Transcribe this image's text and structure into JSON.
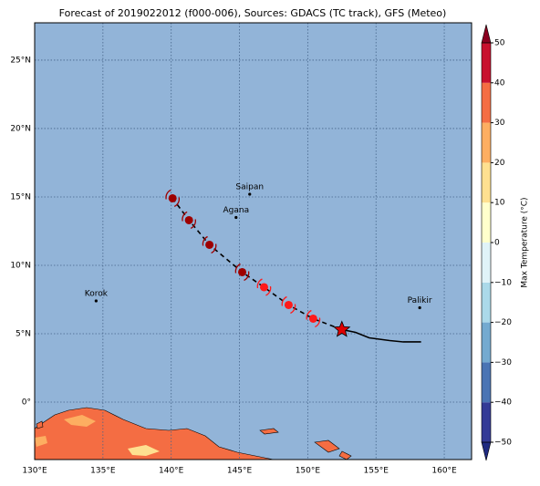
{
  "map": {
    "title": "Forecast of 2019022012 (f000-006), Sources: GDACS (TC track), GFS (Meteo)",
    "xlim": [
      130,
      162
    ],
    "ylim": [
      -4.2,
      27.73
    ],
    "xticks": [
      {
        "value": 130,
        "label": "130°E"
      },
      {
        "value": 135,
        "label": "135°E"
      },
      {
        "value": 140,
        "label": "140°E"
      },
      {
        "value": 145,
        "label": "145°E"
      },
      {
        "value": 150,
        "label": "150°E"
      },
      {
        "value": 155,
        "label": "155°E"
      },
      {
        "value": 160,
        "label": "160°E"
      }
    ],
    "yticks": [
      {
        "value": 0,
        "label": "0°"
      },
      {
        "value": 5,
        "label": "5°N"
      },
      {
        "value": 10,
        "label": "10°N"
      },
      {
        "value": 15,
        "label": "15°N"
      },
      {
        "value": 20,
        "label": "20°N"
      },
      {
        "value": 25,
        "label": "25°N"
      }
    ],
    "grid": true,
    "cities": [
      {
        "name": "Saipan",
        "lon": 145.75,
        "lat": 15.2
      },
      {
        "name": "Agana",
        "lon": 144.75,
        "lat": 13.5
      },
      {
        "name": "Korok",
        "lon": 134.5,
        "lat": 7.4
      },
      {
        "name": "Palikir",
        "lon": 158.2,
        "lat": 6.9
      }
    ],
    "forecast": {
      "lon": [
        152.5,
        150.4,
        148.6,
        146.8,
        145.2,
        142.8,
        141.3,
        140.1
      ],
      "lat": [
        5.3,
        6.1,
        7.1,
        8.4,
        9.5,
        11.5,
        13.3,
        14.9
      ],
      "colors": [
        "#e00000",
        "#ff1a1a",
        "#ff1a1a",
        "#ff1a1a",
        "#9e0000",
        "#9e0000",
        "#9e0000",
        "#9e0000"
      ]
    },
    "past": {
      "lon": [
        152.5,
        153.5,
        154.5,
        156,
        157,
        158.3
      ],
      "lat": [
        5.3,
        5.1,
        4.7,
        4.5,
        4.4,
        4.4
      ]
    },
    "colorbar": {
      "label": "Max Temperature (°C)",
      "ticks": [
        {
          "value": -50,
          "label": "−50"
        },
        {
          "value": -40,
          "label": "−40"
        },
        {
          "value": -30,
          "label": "−30"
        },
        {
          "value": -20,
          "label": "−20"
        },
        {
          "value": -10,
          "label": "−10"
        },
        0,
        10,
        20,
        30,
        40,
        50
      ],
      "colors": [
        "#333a96",
        "#4a74b4",
        "#74aad0",
        "#abd9e9",
        "#e0f3f8",
        "#ffffcc",
        "#fee090",
        "#fdae61",
        "#f46d43",
        "#c8102e"
      ],
      "under": "#1f2a80",
      "over": "#8b0020"
    }
  }
}
